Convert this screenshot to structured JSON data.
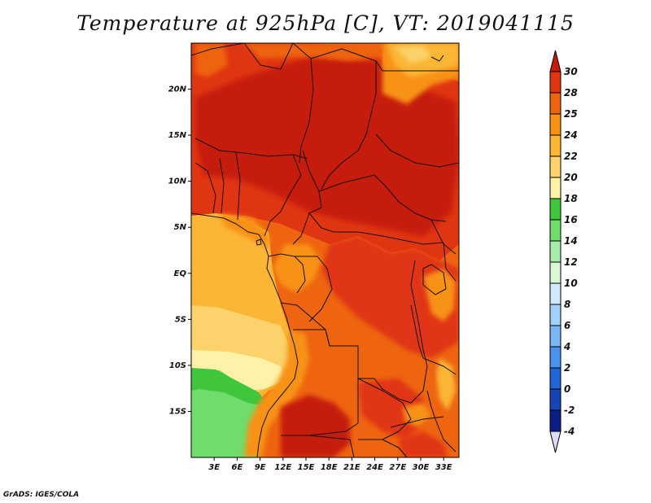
{
  "title": "Temperature at 925hPa [C], VT: 2019041115",
  "credit": "GrADS: IGES/COLA",
  "map": {
    "lon_range": [
      0,
      35
    ],
    "lat_range": [
      -20,
      25
    ],
    "lat_ticks": [
      {
        "value": 20,
        "label": "20N"
      },
      {
        "value": 15,
        "label": "15N"
      },
      {
        "value": 10,
        "label": "10N"
      },
      {
        "value": 5,
        "label": "5N"
      },
      {
        "value": 0,
        "label": "EQ"
      },
      {
        "value": -5,
        "label": "5S"
      },
      {
        "value": -10,
        "label": "10S"
      },
      {
        "value": -15,
        "label": "15S"
      }
    ],
    "lon_ticks": [
      {
        "value": 3,
        "label": "3E"
      },
      {
        "value": 6,
        "label": "6E"
      },
      {
        "value": 9,
        "label": "9E"
      },
      {
        "value": 12,
        "label": "12E"
      },
      {
        "value": 15,
        "label": "15E"
      },
      {
        "value": 18,
        "label": "18E"
      },
      {
        "value": 21,
        "label": "21E"
      },
      {
        "value": 24,
        "label": "24E"
      },
      {
        "value": 27,
        "label": "27E"
      },
      {
        "value": 30,
        "label": "30E"
      },
      {
        "value": 33,
        "label": "33E"
      }
    ]
  },
  "colorbar": {
    "levels": [
      "30",
      "28",
      "25",
      "24",
      "22",
      "20",
      "18",
      "16",
      "14",
      "12",
      "10",
      "8",
      "6",
      "4",
      "2",
      "0",
      "-2",
      "-4"
    ],
    "colors": [
      "#c61a0c",
      "#e03512",
      "#ee6410",
      "#f89212",
      "#fbb636",
      "#fbd26c",
      "#fdf2a8",
      "#3fc63c",
      "#6fdc6c",
      "#a6ecaa",
      "#d8f8d8",
      "#cfe8fc",
      "#a2d2fb",
      "#78b6f4",
      "#4a92ee",
      "#2266d8",
      "#1444b6",
      "#0a1e86",
      "#dcdcf6"
    ]
  }
}
